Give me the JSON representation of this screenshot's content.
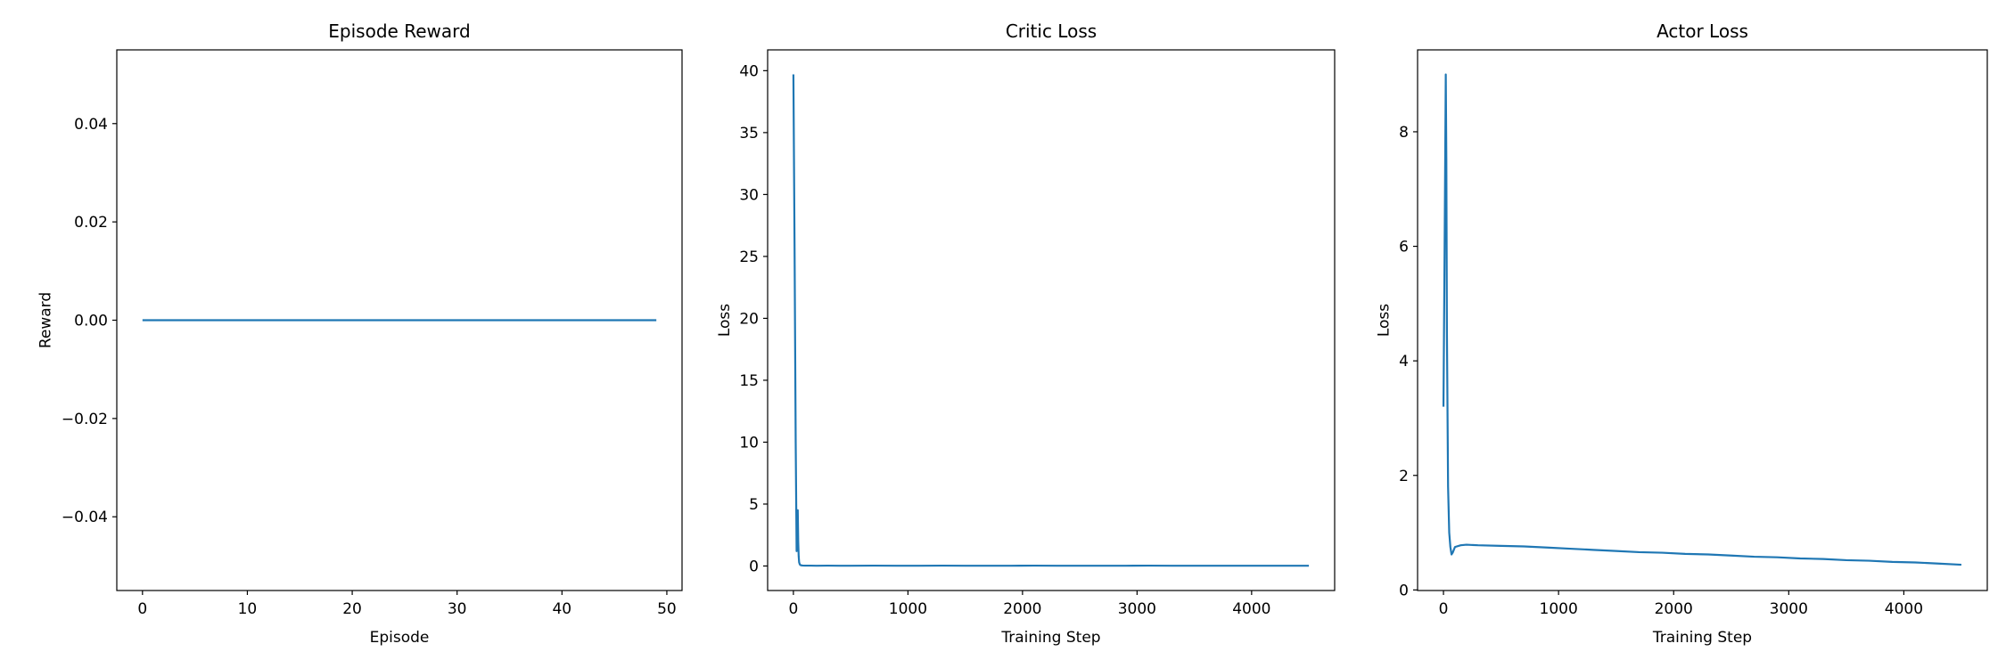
{
  "chart_data": [
    {
      "type": "line",
      "title": "Episode Reward",
      "x_label": "Episode",
      "y_label": "Reward",
      "color": "#1f77b4",
      "x": [
        0,
        1,
        2,
        3,
        4,
        5,
        6,
        7,
        8,
        9,
        10,
        11,
        12,
        13,
        14,
        15,
        16,
        17,
        18,
        19,
        20,
        21,
        22,
        23,
        24,
        25,
        26,
        27,
        28,
        29,
        30,
        31,
        32,
        33,
        34,
        35,
        36,
        37,
        38,
        39,
        40,
        41,
        42,
        43,
        44,
        45,
        46,
        47,
        48,
        49
      ],
      "values": [
        0,
        0,
        0,
        0,
        0,
        0,
        0,
        0,
        0,
        0,
        0,
        0,
        0,
        0,
        0,
        0,
        0,
        0,
        0,
        0,
        0,
        0,
        0,
        0,
        0,
        0,
        0,
        0,
        0,
        0,
        0,
        0,
        0,
        0,
        0,
        0,
        0,
        0,
        0,
        0,
        0,
        0,
        0,
        0,
        0,
        0,
        0,
        0,
        0,
        0
      ],
      "xlim": [
        -2.45,
        51.45
      ],
      "xticks": [
        0,
        10,
        20,
        30,
        40,
        50
      ],
      "ylim": [
        -0.055,
        0.055
      ],
      "yticks": [
        {
          "value": -0.04,
          "label": "−0.04"
        },
        {
          "value": -0.02,
          "label": "−0.02"
        },
        {
          "value": 0,
          "label": "0.00"
        },
        0.02,
        0.04
      ]
    },
    {
      "type": "line",
      "title": "Critic Loss",
      "x_label": "Training Step",
      "y_label": "Loss",
      "color": "#1f77b4",
      "x": [
        0,
        10,
        20,
        28,
        33,
        38,
        42,
        46,
        50,
        55,
        60,
        70,
        80,
        100,
        150,
        200,
        300,
        400,
        500,
        700,
        900,
        1100,
        1300,
        1500,
        1700,
        1900,
        2100,
        2300,
        2500,
        2700,
        2900,
        3100,
        3300,
        3500,
        3700,
        3900,
        4100,
        4300,
        4500
      ],
      "values": [
        39.7,
        26,
        10,
        1.2,
        3.0,
        4.5,
        2.0,
        0.8,
        0.3,
        0.15,
        0.08,
        0.05,
        0.04,
        0.03,
        0.03,
        0.02,
        0.03,
        0.02,
        0.02,
        0.03,
        0.02,
        0.02,
        0.03,
        0.02,
        0.02,
        0.02,
        0.03,
        0.02,
        0.02,
        0.02,
        0.02,
        0.03,
        0.02,
        0.02,
        0.02,
        0.02,
        0.02,
        0.02,
        0.02
      ],
      "xlim": [
        -225,
        4725
      ],
      "xticks": [
        0,
        1000,
        2000,
        3000,
        4000
      ],
      "ylim": [
        -1.98,
        41.68
      ],
      "yticks": [
        0,
        5,
        10,
        15,
        20,
        25,
        30,
        35,
        40
      ]
    },
    {
      "type": "line",
      "title": "Actor Loss",
      "x_label": "Training Step",
      "y_label": "Loss",
      "color": "#1f77b4",
      "x": [
        0,
        10,
        20,
        25,
        30,
        40,
        50,
        60,
        70,
        80,
        100,
        150,
        200,
        300,
        500,
        700,
        900,
        1100,
        1300,
        1500,
        1700,
        1900,
        2100,
        2300,
        2500,
        2700,
        2900,
        3100,
        3300,
        3500,
        3700,
        3900,
        4100,
        4300,
        4500
      ],
      "values": [
        3.2,
        6.0,
        9.0,
        7.5,
        4.5,
        1.8,
        1.0,
        0.75,
        0.62,
        0.65,
        0.75,
        0.78,
        0.79,
        0.78,
        0.77,
        0.76,
        0.74,
        0.72,
        0.7,
        0.68,
        0.66,
        0.65,
        0.63,
        0.62,
        0.6,
        0.58,
        0.57,
        0.55,
        0.54,
        0.52,
        0.51,
        0.49,
        0.48,
        0.46,
        0.44
      ],
      "xlim": [
        -225,
        4725
      ],
      "xticks": [
        0,
        1000,
        2000,
        3000,
        4000
      ],
      "ylim": [
        -0.01,
        9.43
      ],
      "yticks": [
        0,
        2,
        4,
        6,
        8
      ]
    }
  ]
}
